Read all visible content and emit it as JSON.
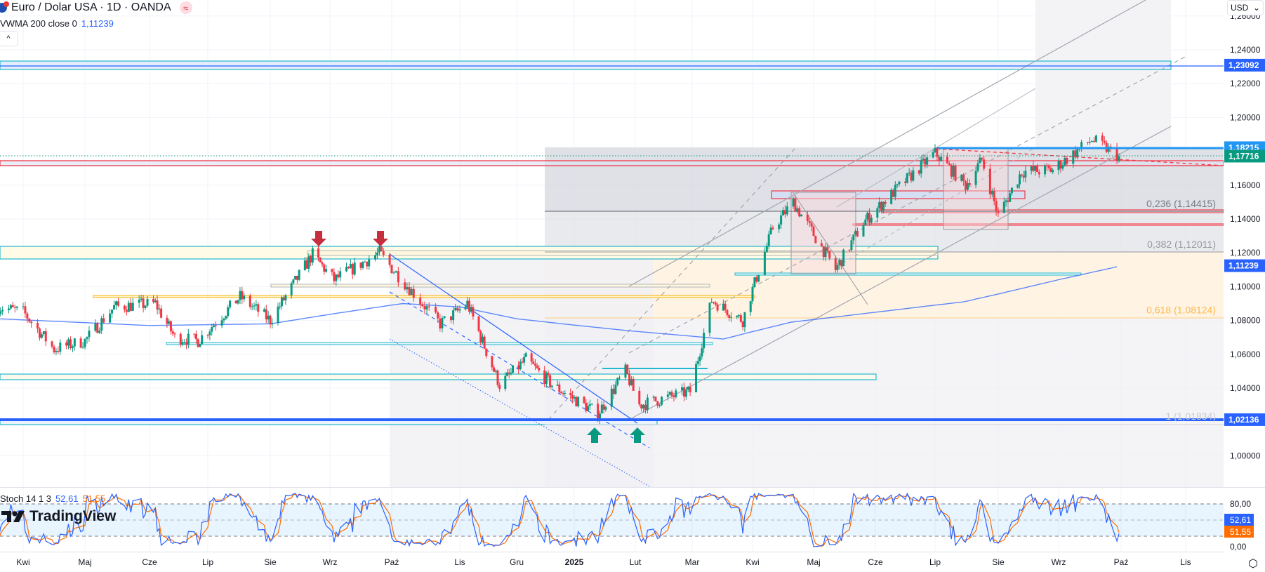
{
  "header": {
    "title": "Euro / Dolar USA · 1D · OANDA",
    "symbol_icon": "eur-usd-flag-icon",
    "badge_icon": "approx-equal-icon",
    "badge_text": "≈",
    "indicator_name": "VWMA 200 close 0",
    "indicator_value": "1,11239",
    "collapse_icon": "chevron-up-icon",
    "collapse_text": "^"
  },
  "currency_selector": {
    "label": "USD",
    "icon": "chevron-down-icon",
    "arrow": "⌄"
  },
  "watermark": {
    "text": "TradingView"
  },
  "settings_icon": "settings-hex-icon",
  "colors": {
    "up": "#089981",
    "down": "#f23645",
    "vwma": "#2962ff",
    "stoch_k": "#2962ff",
    "stoch_d": "#ff6d00",
    "blue_label": "#2962ff",
    "light_blue_label": "#2196f3",
    "green_label": "#089981"
  },
  "chart_data": {
    "type": "candlestick",
    "symbol": "Euro / Dolar USA",
    "interval": "1D",
    "y_ticks": [
      "1,26000",
      "1,24000",
      "1,22000",
      "1,20000",
      "1,16000",
      "1,14000",
      "1,12000",
      "1,10000",
      "1,08000",
      "1,06000",
      "1,04000",
      "1,00000"
    ],
    "y_tick_values": [
      1.26,
      1.24,
      1.22,
      1.2,
      1.16,
      1.14,
      1.12,
      1.1,
      1.08,
      1.06,
      1.04,
      1.0
    ],
    "ylim": [
      0.985,
      1.268
    ],
    "x_ticks": [
      "Kwi",
      "Maj",
      "Cze",
      "Lip",
      "Sie",
      "Wrz",
      "Paź",
      "Lis",
      "Gru",
      "2025",
      "Lut",
      "Mar",
      "Kwi",
      "Maj",
      "Cze",
      "Lip",
      "Sie",
      "Wrz",
      "Paź",
      "Lis"
    ],
    "x_tick_dates": [
      "2024-04-01",
      "2024-05-01",
      "2024-06-01",
      "2024-07-01",
      "2024-08-01",
      "2024-09-01",
      "2024-10-01",
      "2024-11-01",
      "2024-12-01",
      "2025-01-01",
      "2025-02-01",
      "2025-03-01",
      "2025-04-01",
      "2025-05-01",
      "2025-06-01",
      "2025-07-01",
      "2025-08-01",
      "2025-09-01",
      "2025-10-01",
      "2025-11-01"
    ],
    "close_path": [
      [
        "2024-03-20",
        1.088
      ],
      [
        "2024-04-01",
        1.085
      ],
      [
        "2024-04-16",
        1.063
      ],
      [
        "2024-05-01",
        1.068
      ],
      [
        "2024-05-15",
        1.088
      ],
      [
        "2024-06-04",
        1.09
      ],
      [
        "2024-06-14",
        1.07
      ],
      [
        "2024-06-26",
        1.068
      ],
      [
        "2024-07-17",
        1.094
      ],
      [
        "2024-08-01",
        1.08
      ],
      [
        "2024-08-23",
        1.119
      ],
      [
        "2024-09-03",
        1.104
      ],
      [
        "2024-09-25",
        1.12
      ],
      [
        "2024-10-23",
        1.078
      ],
      [
        "2024-11-05",
        1.09
      ],
      [
        "2024-11-22",
        1.042
      ],
      [
        "2024-12-06",
        1.057
      ],
      [
        "2024-12-20",
        1.042
      ],
      [
        "2025-01-13",
        1.025
      ],
      [
        "2025-01-27",
        1.05
      ],
      [
        "2025-02-03",
        1.03
      ],
      [
        "2025-02-28",
        1.038
      ],
      [
        "2025-03-11",
        1.092
      ],
      [
        "2025-03-27",
        1.08
      ],
      [
        "2025-04-11",
        1.135
      ],
      [
        "2025-04-21",
        1.15
      ],
      [
        "2025-05-12",
        1.11
      ],
      [
        "2025-05-26",
        1.138
      ],
      [
        "2025-06-12",
        1.158
      ],
      [
        "2025-07-01",
        1.179
      ],
      [
        "2025-07-16",
        1.16
      ],
      [
        "2025-07-24",
        1.175
      ],
      [
        "2025-08-01",
        1.142
      ],
      [
        "2025-08-13",
        1.168
      ],
      [
        "2025-08-29",
        1.169
      ],
      [
        "2025-09-17",
        1.187
      ],
      [
        "2025-09-30",
        1.177
      ]
    ],
    "vwma_path": [
      [
        "2024-03-20",
        1.081
      ],
      [
        "2024-06-01",
        1.077
      ],
      [
        "2024-08-01",
        1.078
      ],
      [
        "2024-10-06",
        1.09
      ],
      [
        "2024-11-01",
        1.088
      ],
      [
        "2024-12-01",
        1.081
      ],
      [
        "2025-01-28",
        1.074
      ],
      [
        "2025-03-17",
        1.069
      ],
      [
        "2025-04-20",
        1.079
      ],
      [
        "2025-07-15",
        1.091
      ],
      [
        "2025-09-30",
        1.112
      ]
    ],
    "price_labels": [
      {
        "text": "1,23092",
        "value": 1.23092,
        "color": "#2962ff"
      },
      {
        "text": "1,18215",
        "value": 1.18215,
        "color": "#2196f3"
      },
      {
        "text": "1,17716",
        "value": 1.17716,
        "color": "#089981"
      },
      {
        "text": "1,11239",
        "value": 1.11239,
        "color": "#2962ff"
      },
      {
        "text": "1,02136",
        "value": 1.02136,
        "color": "#2962ff"
      }
    ],
    "fib_levels": [
      {
        "text": "0,236 (1,14415)",
        "ratio": 0.236,
        "value": 1.14415,
        "color": "#787b86"
      },
      {
        "text": "0,382 (1,12011)",
        "ratio": 0.382,
        "value": 1.12011,
        "color": "#9598a1"
      },
      {
        "text": "0,618 (1,08124)",
        "ratio": 0.618,
        "value": 1.08124,
        "color": "#ffb74d"
      },
      {
        "text": "1 (1,01834)",
        "ratio": 1,
        "value": 1.01834,
        "color": "#c9cbd1"
      }
    ],
    "stochastic": {
      "label": "Stoch 14 1 3",
      "k_value": "52,61",
      "d_value": "51,55",
      "y_ticks": [
        "80,00",
        "0,00"
      ],
      "bands": [
        20,
        50,
        80
      ]
    }
  }
}
